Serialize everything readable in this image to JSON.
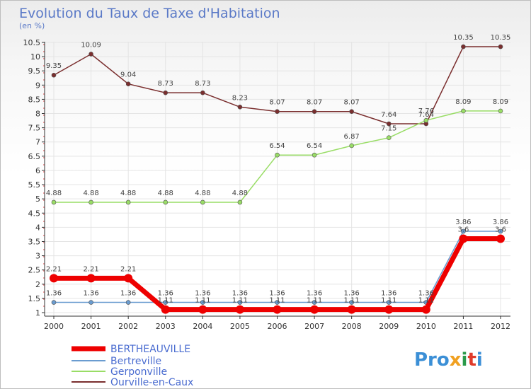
{
  "chart_data": {
    "type": "line",
    "title": "Evolution du Taux de Taxe d'Habitation",
    "ylabel": "(en %)",
    "xlabel": "",
    "x": [
      "2000",
      "2001",
      "2002",
      "2003",
      "2004",
      "2005",
      "2006",
      "2007",
      "2008",
      "2009",
      "2010",
      "2011",
      "2012"
    ],
    "ylim": [
      1,
      10.5
    ],
    "yticks": [
      "1",
      "1.5",
      "2",
      "2.5",
      "3",
      "3.5",
      "4",
      "4.5",
      "5",
      "5.5",
      "6",
      "6.5",
      "7",
      "7.5",
      "8",
      "8.5",
      "9",
      "9.5",
      "10",
      "10.5"
    ],
    "grid": true,
    "legend_position": "bottom-left",
    "series": [
      {
        "name": "BERTHEAUVILLE",
        "color": "#ee0000",
        "values": [
          2.21,
          2.21,
          2.21,
          1.11,
          1.11,
          1.11,
          1.11,
          1.11,
          1.11,
          1.11,
          1.11,
          3.6,
          3.6
        ],
        "labels": [
          "2.21",
          "2.21",
          "2.21",
          "1.11",
          "1.11",
          "1.11",
          "1.11",
          "1.11",
          "1.11",
          "1.11",
          "1.11",
          "3.6",
          "3.6"
        ]
      },
      {
        "name": "Bertreville",
        "color": "#6a9cd0",
        "values": [
          1.36,
          1.36,
          1.36,
          1.36,
          1.36,
          1.36,
          1.36,
          1.36,
          1.36,
          1.36,
          1.36,
          3.86,
          3.86
        ],
        "labels": [
          "1.36",
          "1.36",
          "1.36",
          "1.36",
          "1.36",
          "1.36",
          "1.36",
          "1.36",
          "1.36",
          "1.36",
          "1.36",
          "3.86",
          "3.86"
        ]
      },
      {
        "name": "Gerponville",
        "color": "#99dd66",
        "values": [
          4.88,
          4.88,
          4.88,
          4.88,
          4.88,
          4.88,
          6.54,
          6.54,
          6.87,
          7.15,
          7.76,
          8.09,
          8.09
        ],
        "labels": [
          "4.88",
          "4.88",
          "4.88",
          "4.88",
          "4.88",
          "4.88",
          "6.54",
          "6.54",
          "6.87",
          "7.15",
          "7.76",
          "8.09",
          "8.09"
        ]
      },
      {
        "name": "Ourville-en-Caux",
        "color": "#7a2e2e",
        "values": [
          9.35,
          10.09,
          9.04,
          8.73,
          8.73,
          8.23,
          8.07,
          8.07,
          8.07,
          7.64,
          7.64,
          10.35,
          10.35
        ],
        "labels": [
          "9.35",
          "10.09",
          "9.04",
          "8.73",
          "8.73",
          "8.23",
          "8.07",
          "8.07",
          "8.07",
          "7.64",
          "7.64",
          "10.35",
          "10.35"
        ]
      }
    ]
  },
  "branding": {
    "logo_text": "Proxiti"
  }
}
